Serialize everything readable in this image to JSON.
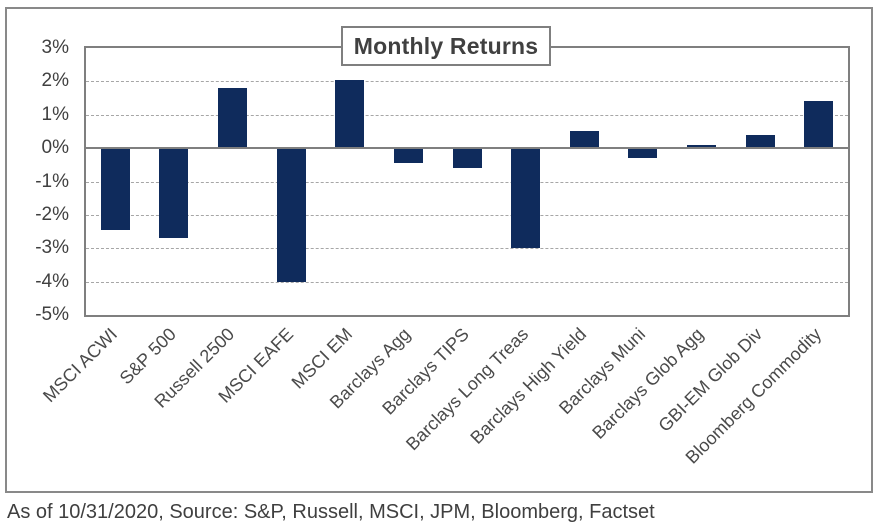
{
  "chart_data": {
    "type": "bar",
    "title": "Monthly Returns",
    "categories": [
      "MSCI ACWI",
      "S&P 500",
      "Russell 2500",
      "MSCI EAFE",
      "MSCI EM",
      "Barclays Agg",
      "Barclays TIPS",
      "Barclays Long Treas",
      "Barclays High Yield",
      "Barclays Muni",
      "Barclays Glob Agg",
      "GBI-EM Glob Div",
      "Bloomberg Commodity"
    ],
    "values": [
      -2.45,
      -2.7,
      1.8,
      -4.0,
      2.05,
      -0.45,
      -0.6,
      -3.0,
      0.5,
      -0.3,
      0.1,
      0.4,
      1.4
    ],
    "unit": "%",
    "xlabel": "",
    "ylabel": "",
    "ylim": [
      -5,
      3
    ],
    "yticks": [
      3,
      2,
      1,
      0,
      -1,
      -2,
      -3,
      -4,
      -5
    ],
    "yticklabels": [
      "3%",
      "2%",
      "1%",
      "0%",
      "-1%",
      "-2%",
      "-3%",
      "-4%",
      "-5%"
    ],
    "grid": "horizontal-dashed",
    "legend": false,
    "bar_color": "#0f2b5c"
  },
  "footer": {
    "text": "As of 10/31/2020, Source: S&P, Russell, MSCI, JPM, Bloomberg, Factset"
  }
}
